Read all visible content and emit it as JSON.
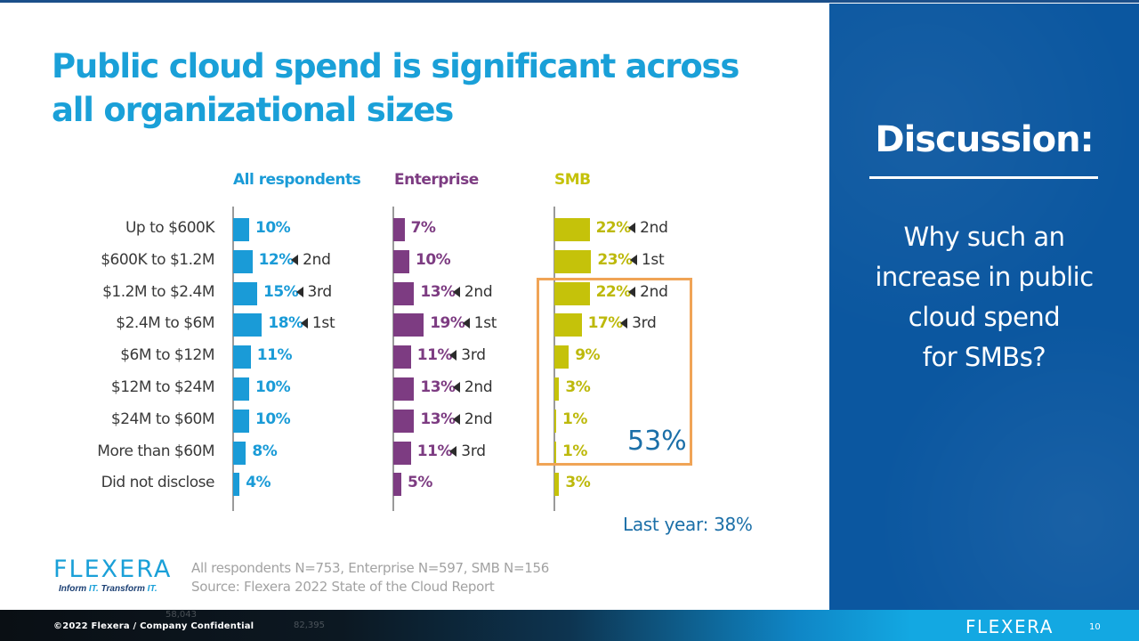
{
  "slide": {
    "title_line1": "Public cloud spend is significant across",
    "title_line2": "all organizational sizes"
  },
  "chart_data": {
    "type": "bar",
    "orientation": "horizontal",
    "title": "Public cloud spend is significant across all organizational sizes",
    "xlabel": "",
    "ylabel": "",
    "categories": [
      "Up to $600K",
      "$600K to $1.2M",
      "$1.2M to $2.4M",
      "$2.4M to $6M",
      "$6M to $12M",
      "$12M to $24M",
      "$24M to $60M",
      "More than $60M",
      "Did not disclose"
    ],
    "xlim": [
      0,
      100
    ],
    "grid": false,
    "series": [
      {
        "name": "All respondents",
        "color": "#1a9bd7",
        "values": [
          10,
          12,
          15,
          18,
          11,
          10,
          10,
          8,
          4
        ],
        "labels": [
          "10%",
          "12%",
          "15%",
          "18%",
          "11%",
          "10%",
          "10%",
          "8%",
          "4%"
        ],
        "ranks": [
          "",
          "2nd",
          "3rd",
          "1st",
          "",
          "",
          "",
          "",
          ""
        ]
      },
      {
        "name": "Enterprise",
        "color": "#7d3c82",
        "values": [
          7,
          10,
          13,
          19,
          11,
          13,
          13,
          11,
          5
        ],
        "labels": [
          "7%",
          "10%",
          "13%",
          "19%",
          "11%",
          "13%",
          "13%",
          "11%",
          "5%"
        ],
        "ranks": [
          "",
          "",
          "2nd",
          "1st",
          "3rd",
          "2nd",
          "2nd",
          "3rd",
          ""
        ]
      },
      {
        "name": "SMB",
        "color": "#c5c20a",
        "values": [
          22,
          23,
          22,
          17,
          9,
          3,
          1,
          1,
          3
        ],
        "labels": [
          "22%",
          "23%",
          "22%",
          "17%",
          "9%",
          "3%",
          "1%",
          "1%",
          "3%"
        ],
        "ranks": [
          "2nd",
          "1st",
          "2nd",
          "3rd",
          "",
          "",
          "",
          "",
          ""
        ]
      }
    ],
    "annotations": {
      "highlight_total": "53%",
      "highlight_range": [
        "$1.2M to $2.4M",
        "More than $60M"
      ],
      "highlight_color": "#f0a456",
      "last_year": "Last year: 38%"
    }
  },
  "footer": {
    "logo": "FLEXERA",
    "tagline_1": "Inform ",
    "tagline_2": "IT.",
    "tagline_3": " Transform ",
    "tagline_4": "IT.",
    "source_line1": "All respondents N=753, Enterprise N=597, SMB N=156",
    "source_line2": "Source: Flexera 2022 State of the Cloud Report",
    "copyright": "©2022 Flexera / Company Confidential",
    "bg_number_1": "58,043",
    "bg_number_2": "82,395",
    "bottom_logo": "FLEXERA",
    "page_number": "10"
  },
  "discussion": {
    "title": "Discussion:",
    "line1": "Why such an",
    "line2": "increase in public",
    "line3": "cloud spend",
    "line4": "for SMBs?"
  }
}
